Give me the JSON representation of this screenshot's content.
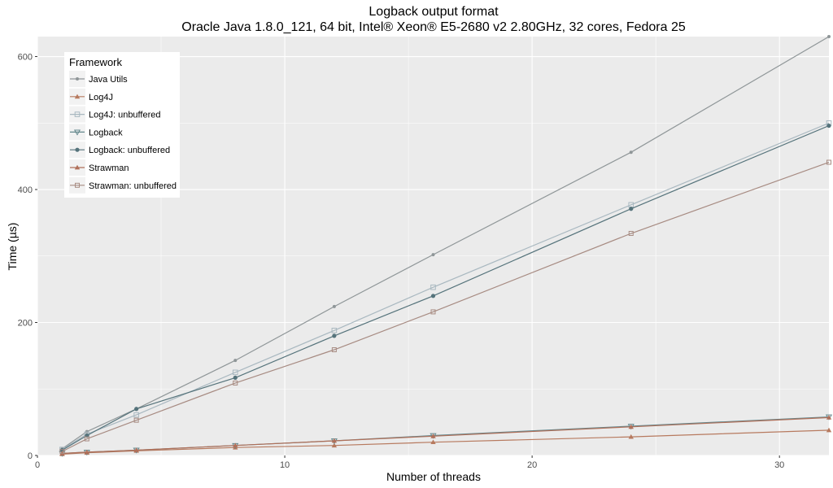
{
  "chart_data": {
    "type": "line",
    "title": "Logback output format",
    "subtitle": "Oracle Java 1.8.0_121, 64 bit, Intel® Xeon® E5-2680 v2 2.80GHz, 32 cores, Fedora 25",
    "xlabel": "Number of threads",
    "ylabel": "Time (µs)",
    "xlim": [
      0,
      32
    ],
    "ylim": [
      0,
      630
    ],
    "x_ticks": [
      0,
      10,
      20,
      30
    ],
    "y_ticks": [
      0,
      200,
      400,
      600
    ],
    "grid": true,
    "legend_title": "Framework",
    "legend_position": "top-left",
    "x": [
      1,
      2,
      4,
      8,
      12,
      16,
      24,
      32
    ],
    "series": [
      {
        "name": "Java Utils",
        "color": "#8f9698",
        "marker": "circle-small",
        "values": [
          10,
          36,
          70,
          143,
          224,
          302,
          456,
          630
        ]
      },
      {
        "name": "Log4J",
        "color": "#b77a5f",
        "marker": "triangle",
        "values": [
          2,
          4,
          7,
          12,
          15,
          20,
          28,
          38
        ]
      },
      {
        "name": "Log4J: unbuffered",
        "color": "#a9b8c0",
        "marker": "square",
        "values": [
          9,
          32,
          61,
          125,
          188,
          253,
          377,
          500
        ]
      },
      {
        "name": "Logback",
        "color": "#64888d",
        "marker": "triangle-down",
        "values": [
          3,
          5,
          8,
          15,
          22,
          30,
          44,
          58
        ]
      },
      {
        "name": "Logback: unbuffered",
        "color": "#55737b",
        "marker": "circle",
        "values": [
          8,
          30,
          70,
          117,
          180,
          240,
          371,
          496
        ]
      },
      {
        "name": "Strawman",
        "color": "#b0705a",
        "marker": "triangle",
        "values": [
          3,
          5,
          8,
          15,
          22,
          29,
          43,
          57
        ]
      },
      {
        "name": "Strawman: unbuffered",
        "color": "#a78b82",
        "marker": "square-open",
        "values": [
          6,
          25,
          53,
          109,
          159,
          216,
          334,
          441
        ]
      }
    ]
  }
}
